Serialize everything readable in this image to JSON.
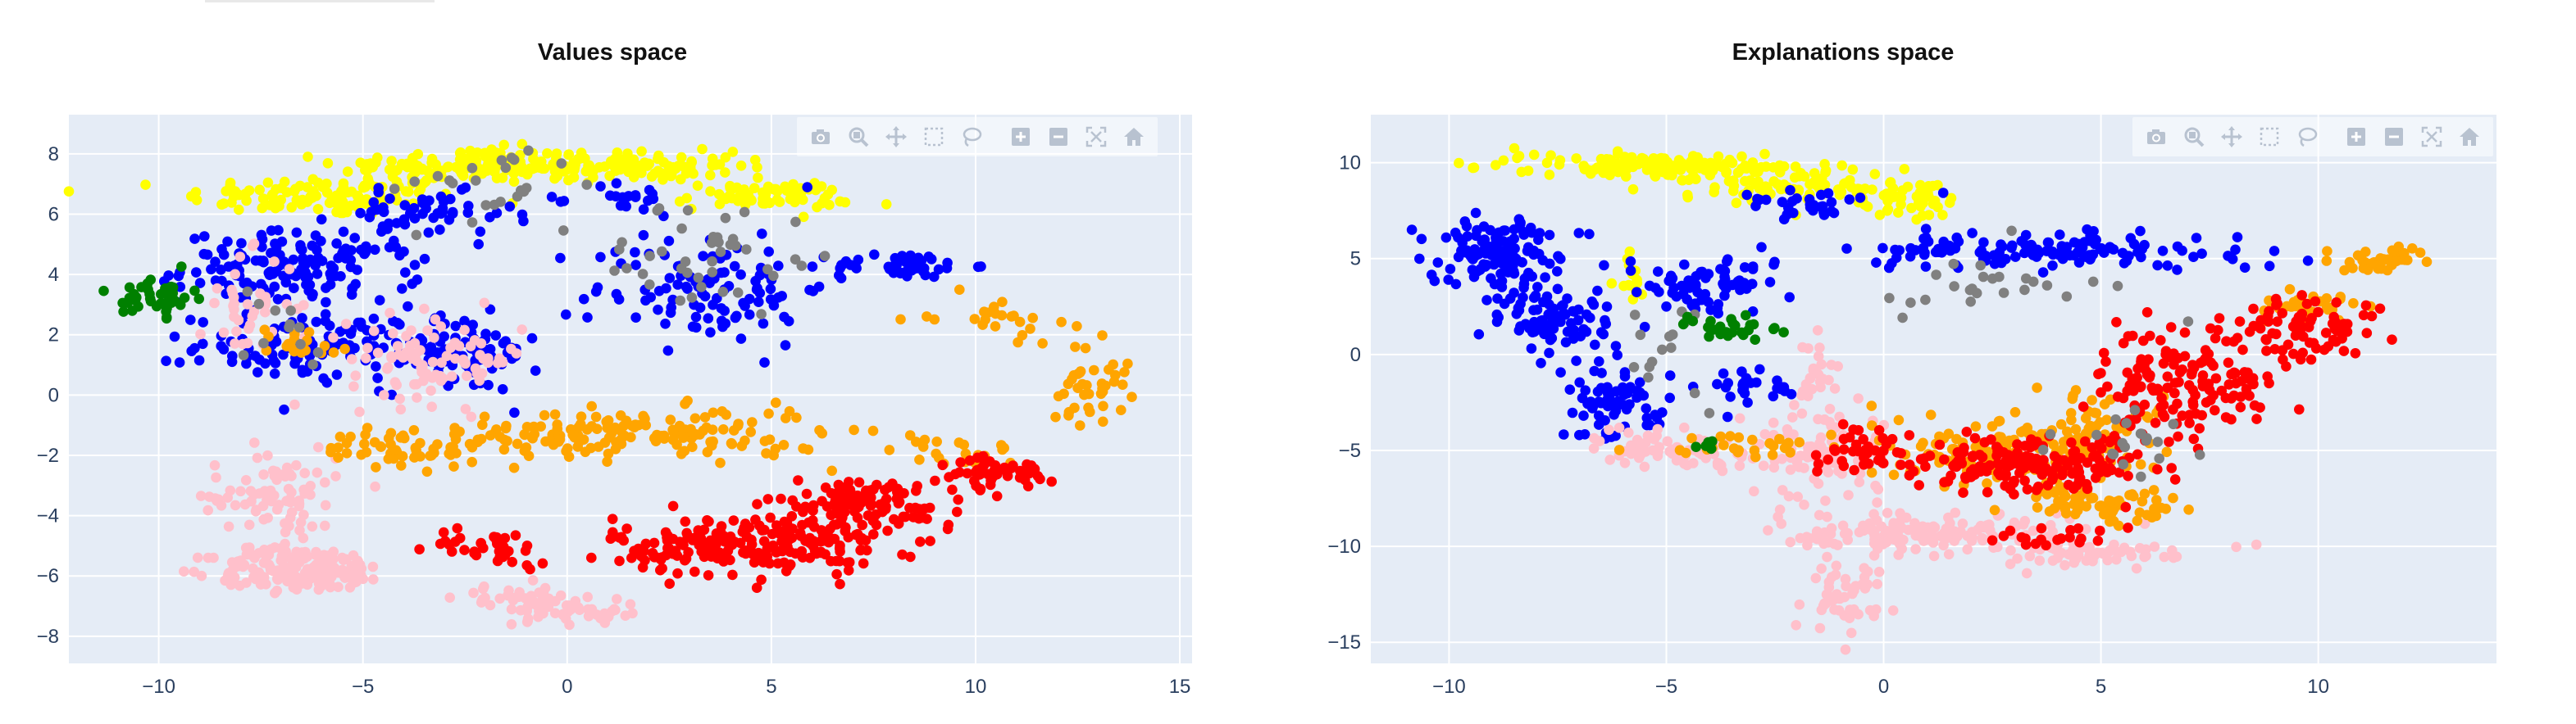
{
  "colors": {
    "plot_bg": "#e5ecf6",
    "grid": "#ffffff",
    "tick_text": "#2a3f5f",
    "blue": "#0000ff",
    "red": "#ff0000",
    "orange": "#ffa500",
    "pink": "#ffc0cb",
    "yellow": "#ffff00",
    "gray": "#808080",
    "green": "#008000"
  },
  "modebar_icons": [
    "camera-icon",
    "zoom-icon",
    "pan-icon",
    "box-select-icon",
    "lasso-select-icon",
    "zoom-in-icon",
    "zoom-out-icon",
    "autoscale-icon",
    "reset-axes-icon"
  ],
  "chart_data": [
    {
      "type": "scatter",
      "title": "Values space",
      "xlabel": "",
      "ylabel": "",
      "xlim": [
        -12.2,
        15.3
      ],
      "ylim": [
        -8.9,
        9.3
      ],
      "xticks": [
        -10,
        -5,
        0,
        5,
        10,
        15
      ],
      "yticks": [
        -8,
        -6,
        -4,
        -2,
        0,
        2,
        4,
        6,
        8
      ],
      "xtick_labels": [
        "−10",
        "−5",
        "0",
        "5",
        "10",
        "15"
      ],
      "ytick_labels": [
        "−8",
        "−6",
        "−4",
        "−2",
        "0",
        "2",
        "4",
        "6",
        "8"
      ],
      "grid": true,
      "legend": "none",
      "series": [
        {
          "color": "yellow",
          "blobs": [
            [
              -6,
              6.6,
              2.8,
              0.55,
              110
            ],
            [
              -2.5,
              7.6,
              2.6,
              0.5,
              130
            ],
            [
              1.5,
              7.6,
              2.2,
              0.4,
              110
            ],
            [
              4.8,
              6.6,
              1.8,
              0.4,
              70
            ]
          ]
        },
        {
          "color": "blue",
          "blobs": [
            [
              -6.5,
              4.2,
              2.4,
              1.0,
              150
            ],
            [
              -6.2,
              1.6,
              2.4,
              0.9,
              110
            ],
            [
              -2.6,
              1.4,
              1.6,
              1.1,
              80
            ],
            [
              -3.5,
              6.0,
              1.8,
              0.6,
              50
            ],
            [
              3.5,
              3.6,
              2.4,
              1.6,
              110
            ],
            [
              8.2,
              4.3,
              1.4,
              0.35,
              45
            ],
            [
              1.5,
              6.5,
              1.0,
              0.5,
              20
            ]
          ]
        },
        {
          "color": "pink",
          "blobs": [
            [
              -6.5,
              -5.8,
              1.8,
              0.6,
              170
            ],
            [
              -7.2,
              -3.4,
              1.3,
              1.4,
              90
            ],
            [
              -3.2,
              1.2,
              1.8,
              1.2,
              90
            ],
            [
              -7.8,
              3.0,
              1.0,
              1.4,
              40
            ],
            [
              -1.0,
              -6.9,
              1.4,
              0.5,
              50
            ],
            [
              0.8,
              -7.2,
              0.9,
              0.4,
              25
            ]
          ]
        },
        {
          "color": "orange",
          "blobs": [
            [
              1.5,
              -1.3,
              4.0,
              0.7,
              170
            ],
            [
              -4.0,
              -1.8,
              1.6,
              0.5,
              50
            ],
            [
              12.8,
              0.4,
              0.8,
              1.1,
              40
            ],
            [
              10.5,
              2.6,
              1.3,
              0.6,
              25
            ],
            [
              -6.5,
              1.7,
              1.0,
              0.5,
              20
            ],
            [
              9.5,
              -1.9,
              1.3,
              0.4,
              20
            ]
          ]
        },
        {
          "color": "red",
          "blobs": [
            [
              4.5,
              -5.0,
              2.8,
              0.8,
              220
            ],
            [
              7.2,
              -3.6,
              2.0,
              0.7,
              110
            ],
            [
              10.5,
              -2.6,
              1.2,
              0.4,
              50
            ],
            [
              -1.8,
              -5.0,
              1.3,
              0.5,
              35
            ]
          ]
        },
        {
          "color": "gray",
          "blobs": [
            [
              3.5,
              4.6,
              2.2,
              1.6,
              40
            ],
            [
              -1.8,
              6.8,
              2.6,
              1.2,
              25
            ],
            [
              -7,
              2.2,
              1.5,
              1.5,
              12
            ]
          ]
        },
        {
          "color": "green",
          "blobs": [
            [
              -10.0,
              3.3,
              0.7,
              0.55,
              45
            ]
          ]
        }
      ]
    },
    {
      "type": "scatter",
      "title": "Explanations space",
      "xlabel": "",
      "ylabel": "",
      "xlim": [
        -11.8,
        14.1
      ],
      "ylim": [
        -16.1,
        12.5
      ],
      "xticks": [
        -10,
        -5,
        0,
        5,
        10
      ],
      "yticks": [
        -15,
        -10,
        -5,
        0,
        5,
        10
      ],
      "xtick_labels": [
        "−10",
        "−5",
        "0",
        "5",
        "10"
      ],
      "ytick_labels": [
        "−15",
        "−10",
        "−5",
        "0",
        "5",
        "10"
      ],
      "grid": true,
      "legend": "none",
      "series": [
        {
          "color": "yellow",
          "blobs": [
            [
              -5.5,
              9.9,
              2.5,
              0.5,
              130
            ],
            [
              -2.5,
              9.0,
              2.0,
              0.8,
              80
            ],
            [
              0,
              8.1,
              1.6,
              0.8,
              50
            ],
            [
              -5.8,
              4.2,
              0.3,
              1.5,
              15
            ]
          ]
        },
        {
          "color": "blue",
          "blobs": [
            [
              -8.8,
              5.3,
              1.1,
              1.6,
              130
            ],
            [
              -7.6,
              2.0,
              1.2,
              1.6,
              90
            ],
            [
              -6.2,
              -2.5,
              1.2,
              1.6,
              70
            ],
            [
              -4.0,
              3.5,
              1.6,
              1.3,
              70
            ],
            [
              4.0,
              5.4,
              3.5,
              0.7,
              140
            ],
            [
              -1.5,
              7.8,
              1.2,
              0.8,
              30
            ],
            [
              -3.0,
              -1.5,
              1.2,
              0.8,
              25
            ]
          ]
        },
        {
          "color": "pink",
          "blobs": [
            [
              -5.0,
              -5.0,
              1.3,
              0.8,
              70
            ],
            [
              -1.5,
              -5.0,
              1.3,
              2.0,
              90
            ],
            [
              1.0,
              -9.3,
              2.6,
              0.8,
              150
            ],
            [
              -1.0,
              -12.5,
              0.8,
              1.6,
              50
            ],
            [
              4.5,
              -10.4,
              2.0,
              0.5,
              60
            ],
            [
              -1.5,
              -1.0,
              0.4,
              1.6,
              25
            ]
          ]
        },
        {
          "color": "orange",
          "blobs": [
            [
              3.0,
              -5.0,
              2.8,
              1.5,
              150
            ],
            [
              5.0,
              -7.8,
              1.4,
              0.8,
              60
            ],
            [
              11.5,
              4.9,
              0.9,
              0.6,
              40
            ],
            [
              9.8,
              2.5,
              1.0,
              0.7,
              30
            ],
            [
              -3.0,
              -4.8,
              1.5,
              0.5,
              25
            ],
            [
              5.0,
              -3.5,
              1.5,
              1.5,
              30
            ]
          ]
        },
        {
          "color": "red",
          "blobs": [
            [
              3.2,
              -5.8,
              2.2,
              1.2,
              170
            ],
            [
              6.8,
              -1.6,
              1.6,
              2.2,
              150
            ],
            [
              9.5,
              1.3,
              1.4,
              1.4,
              80
            ],
            [
              -0.5,
              -5.0,
              1.0,
              0.9,
              35
            ],
            [
              4.0,
              -9.5,
              1.2,
              0.5,
              20
            ]
          ]
        },
        {
          "color": "gray",
          "blobs": [
            [
              2.0,
              3.4,
              3.0,
              1.5,
              25
            ],
            [
              5.5,
              -4.5,
              1.5,
              1.5,
              20
            ],
            [
              -5,
              0,
              1.2,
              3.0,
              15
            ]
          ]
        },
        {
          "color": "green",
          "blobs": [
            [
              -3.5,
              1.3,
              1.2,
              0.6,
              25
            ],
            [
              -4.2,
              -4.7,
              0.5,
              0.4,
              5
            ]
          ]
        }
      ]
    }
  ]
}
